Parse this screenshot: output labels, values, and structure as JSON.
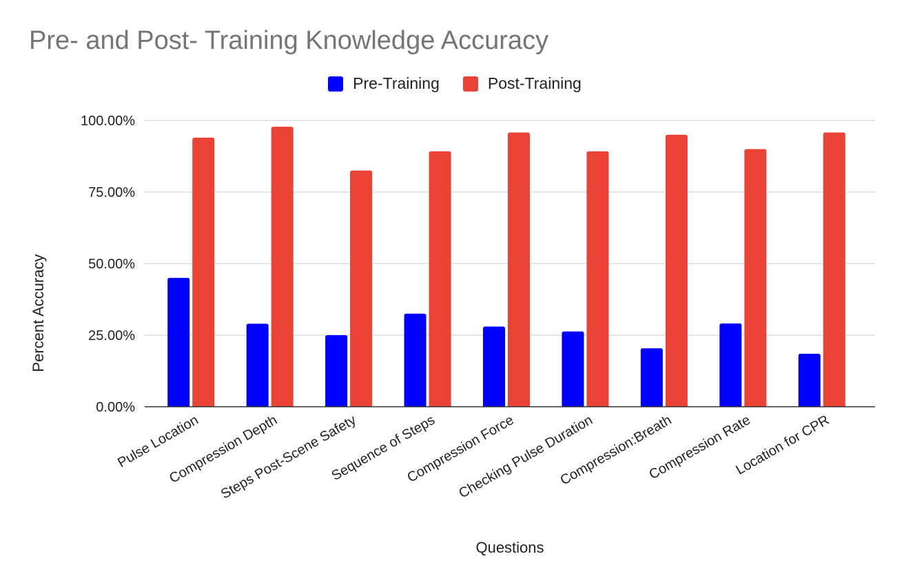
{
  "chart_data": {
    "type": "bar",
    "title": "Pre- and Post- Training Knowledge Accuracy",
    "xlabel": "Questions",
    "ylabel": "Percent Accuracy",
    "categories": [
      "Pulse Location",
      "Compression Depth",
      "Steps Post-Scene Safety",
      "Sequence of Steps",
      "Compression Force",
      "Checking Pulse Duration",
      "Compression:Breath",
      "Compression Rate",
      "Location for CPR"
    ],
    "series": [
      {
        "name": "Pre-Training",
        "color": "#0000ff",
        "values": [
          45.0,
          29.0,
          25.0,
          32.5,
          28.0,
          26.3,
          20.4,
          29.1,
          18.5
        ]
      },
      {
        "name": "Post-Training",
        "color": "#ea4335",
        "values": [
          94.0,
          97.8,
          82.5,
          89.2,
          95.8,
          89.2,
          95.0,
          90.0,
          95.8
        ]
      }
    ],
    "ylim": [
      0,
      100
    ],
    "yticks": [
      "0.00%",
      "25.00%",
      "50.00%",
      "75.00%",
      "100.00%"
    ],
    "grid": true,
    "legend": "top"
  }
}
